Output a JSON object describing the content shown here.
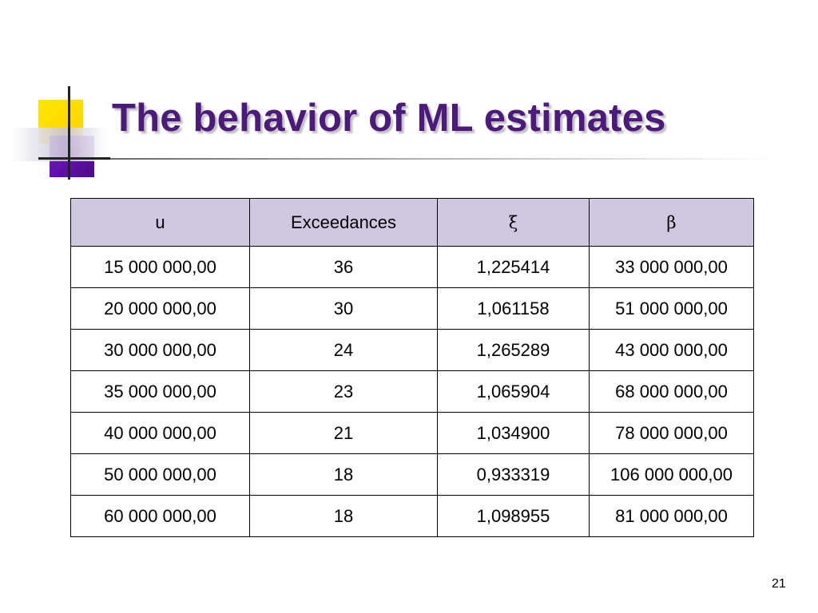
{
  "slide": {
    "title": "The behavior of ML estimates",
    "page_number": "21"
  },
  "table": {
    "headers": [
      "u",
      "Exceedances",
      "ξ",
      "β"
    ],
    "rows": [
      [
        "15 000 000,00",
        "36",
        "1,225414",
        "33 000 000,00"
      ],
      [
        "20 000 000,00",
        "30",
        "1,061158",
        "51 000 000,00"
      ],
      [
        "30 000 000,00",
        "24",
        "1,265289",
        "43 000 000,00"
      ],
      [
        "35 000 000,00",
        "23",
        "1,065904",
        "68 000 000,00"
      ],
      [
        "40 000 000,00",
        "21",
        "1,034900",
        "78 000 000,00"
      ],
      [
        "50 000 000,00",
        "18",
        "0,933319",
        "106 000 000,00"
      ],
      [
        "60 000 000,00",
        "18",
        "1,098955",
        "81 000 000,00"
      ]
    ]
  },
  "colors": {
    "title": "#4b1a7a",
    "header_bg": "#cfc8e0",
    "deco_yellow": "#ffe600",
    "deco_purple": "#6a14b0"
  }
}
